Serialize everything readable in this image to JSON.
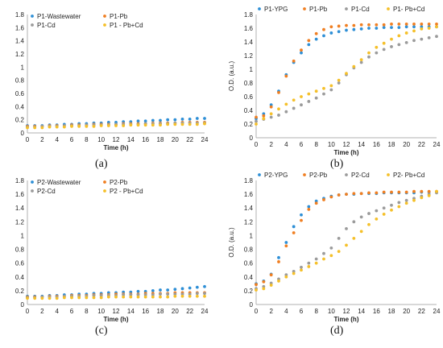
{
  "chart_data": [
    {
      "panel": "(a)",
      "type": "scatter",
      "xlabel": "Time (h)",
      "ylabel": "",
      "xlim": [
        0,
        24
      ],
      "ylim": [
        0,
        1.8
      ],
      "xticks": [
        "0",
        "2",
        "4",
        "6",
        "8",
        "10",
        "12",
        "14",
        "16",
        "18",
        "20",
        "22",
        "24"
      ],
      "yticks": [
        "0",
        "0.2",
        "0.4",
        "0.6",
        "0.8",
        "1",
        "1.2",
        "1.4",
        "1.6",
        "1.8"
      ],
      "legend": "top-left, two columns",
      "grid": false,
      "x": [
        0,
        1,
        2,
        3,
        4,
        5,
        6,
        7,
        8,
        9,
        10,
        11,
        12,
        13,
        14,
        15,
        16,
        17,
        18,
        19,
        20,
        21,
        22,
        23,
        24
      ],
      "series": [
        {
          "name": "P1-Wastewater",
          "color": "#2e8fd6",
          "values": [
            0.11,
            0.11,
            0.11,
            0.12,
            0.12,
            0.13,
            0.13,
            0.14,
            0.14,
            0.15,
            0.15,
            0.16,
            0.16,
            0.17,
            0.17,
            0.18,
            0.18,
            0.19,
            0.19,
            0.2,
            0.2,
            0.21,
            0.21,
            0.22,
            0.22
          ]
        },
        {
          "name": "P1-Pb",
          "color": "#f07f22",
          "values": [
            0.1,
            0.1,
            0.1,
            0.11,
            0.11,
            0.11,
            0.12,
            0.12,
            0.12,
            0.13,
            0.13,
            0.13,
            0.13,
            0.14,
            0.14,
            0.14,
            0.14,
            0.15,
            0.15,
            0.15,
            0.15,
            0.16,
            0.16,
            0.16,
            0.16
          ]
        },
        {
          "name": "P1-Cd",
          "color": "#9b9b9b",
          "values": [
            0.09,
            0.09,
            0.1,
            0.1,
            0.1,
            0.11,
            0.11,
            0.11,
            0.12,
            0.12,
            0.12,
            0.12,
            0.13,
            0.13,
            0.13,
            0.13,
            0.14,
            0.14,
            0.14,
            0.14,
            0.15,
            0.15,
            0.15,
            0.15,
            0.15
          ]
        },
        {
          "name": "P1 - Pb+Cd",
          "color": "#f5c02a",
          "values": [
            0.08,
            0.08,
            0.08,
            0.09,
            0.09,
            0.09,
            0.1,
            0.1,
            0.1,
            0.1,
            0.11,
            0.11,
            0.11,
            0.11,
            0.12,
            0.12,
            0.12,
            0.12,
            0.12,
            0.13,
            0.13,
            0.13,
            0.13,
            0.13,
            0.14
          ]
        }
      ]
    },
    {
      "panel": "(b)",
      "type": "scatter",
      "xlabel": "Time (h)",
      "ylabel": "O.D. (a.u.)",
      "xlim": [
        0,
        24
      ],
      "ylim": [
        0,
        1.8
      ],
      "xticks": [
        "0",
        "2",
        "4",
        "6",
        "8",
        "10",
        "12",
        "14",
        "16",
        "18",
        "20",
        "22",
        "24"
      ],
      "yticks": [
        "0",
        "0.2",
        "0.4",
        "0.6",
        "0.8",
        "1",
        "1.2",
        "1.4",
        "1.6",
        "1.8"
      ],
      "legend": "top, one row",
      "grid": false,
      "x": [
        0,
        1,
        2,
        3,
        4,
        5,
        6,
        7,
        8,
        9,
        10,
        11,
        12,
        13,
        14,
        15,
        16,
        17,
        18,
        19,
        20,
        21,
        22,
        23,
        24
      ],
      "series": [
        {
          "name": "P1-YPG",
          "color": "#2e8fd6",
          "values": [
            0.28,
            0.35,
            0.48,
            0.68,
            0.92,
            1.1,
            1.24,
            1.36,
            1.44,
            1.49,
            1.53,
            1.55,
            1.57,
            1.58,
            1.59,
            1.6,
            1.6,
            1.61,
            1.61,
            1.61,
            1.62,
            1.62,
            1.62,
            1.62,
            1.62
          ]
        },
        {
          "name": "P1-Pb",
          "color": "#f07f22",
          "values": [
            0.3,
            0.32,
            0.45,
            0.66,
            0.9,
            1.12,
            1.28,
            1.42,
            1.52,
            1.58,
            1.62,
            1.63,
            1.64,
            1.64,
            1.65,
            1.65,
            1.65,
            1.65,
            1.66,
            1.66,
            1.66,
            1.66,
            1.66,
            1.66,
            1.66
          ]
        },
        {
          "name": "P1-Cd",
          "color": "#9b9b9b",
          "values": [
            0.24,
            0.27,
            0.3,
            0.33,
            0.38,
            0.43,
            0.48,
            0.53,
            0.58,
            0.64,
            0.7,
            0.8,
            0.92,
            1.02,
            1.1,
            1.18,
            1.24,
            1.29,
            1.33,
            1.36,
            1.39,
            1.42,
            1.44,
            1.46,
            1.48
          ]
        },
        {
          "name": "P1- Pb+Cd",
          "color": "#f5c02a",
          "values": [
            0.2,
            0.28,
            0.35,
            0.42,
            0.49,
            0.55,
            0.6,
            0.64,
            0.68,
            0.72,
            0.76,
            0.84,
            0.94,
            1.04,
            1.14,
            1.24,
            1.32,
            1.38,
            1.44,
            1.49,
            1.53,
            1.56,
            1.59,
            1.6,
            1.62
          ]
        }
      ]
    },
    {
      "panel": "(c)",
      "type": "scatter",
      "xlabel": "Time (h)",
      "ylabel": "",
      "xlim": [
        0,
        24
      ],
      "ylim": [
        0,
        1.8
      ],
      "xticks": [
        "0",
        "2",
        "4",
        "6",
        "8",
        "10",
        "12",
        "14",
        "16",
        "18",
        "20",
        "22",
        "24"
      ],
      "yticks": [
        "0",
        "0.2",
        "0.4",
        "0.6",
        "0.8",
        "1",
        "1.2",
        "1.4",
        "1.6",
        "1.8"
      ],
      "legend": "top-left, two columns",
      "grid": false,
      "x": [
        0,
        1,
        2,
        3,
        4,
        5,
        6,
        7,
        8,
        9,
        10,
        11,
        12,
        13,
        14,
        15,
        16,
        17,
        18,
        19,
        20,
        21,
        22,
        23,
        24
      ],
      "series": [
        {
          "name": "P2-Wastewater",
          "color": "#2e8fd6",
          "values": [
            0.12,
            0.12,
            0.12,
            0.13,
            0.13,
            0.14,
            0.14,
            0.15,
            0.15,
            0.16,
            0.16,
            0.17,
            0.17,
            0.18,
            0.18,
            0.19,
            0.19,
            0.2,
            0.21,
            0.21,
            0.22,
            0.23,
            0.24,
            0.25,
            0.26
          ]
        },
        {
          "name": "P2-Pb",
          "color": "#f07f22",
          "values": [
            0.11,
            0.11,
            0.11,
            0.12,
            0.12,
            0.12,
            0.13,
            0.13,
            0.13,
            0.14,
            0.14,
            0.14,
            0.15,
            0.15,
            0.15,
            0.15,
            0.16,
            0.16,
            0.16,
            0.16,
            0.17,
            0.17,
            0.17,
            0.17,
            0.17
          ]
        },
        {
          "name": "P2-Cd",
          "color": "#9b9b9b",
          "values": [
            0.1,
            0.1,
            0.11,
            0.11,
            0.11,
            0.12,
            0.12,
            0.12,
            0.12,
            0.13,
            0.13,
            0.13,
            0.13,
            0.14,
            0.14,
            0.14,
            0.14,
            0.14,
            0.15,
            0.15,
            0.15,
            0.15,
            0.15,
            0.16,
            0.16
          ]
        },
        {
          "name": "P2 - Pb+Cd",
          "color": "#f5c02a",
          "values": [
            0.09,
            0.09,
            0.09,
            0.09,
            0.09,
            0.1,
            0.1,
            0.1,
            0.1,
            0.1,
            0.1,
            0.11,
            0.11,
            0.11,
            0.11,
            0.11,
            0.11,
            0.11,
            0.11,
            0.11,
            0.12,
            0.12,
            0.12,
            0.12,
            0.12
          ]
        }
      ]
    },
    {
      "panel": "(d)",
      "type": "scatter",
      "xlabel": "Time (h)",
      "ylabel": "O.D. (a.u.)",
      "xlim": [
        0,
        24
      ],
      "ylim": [
        0,
        1.8
      ],
      "xticks": [
        "0",
        "2",
        "4",
        "6",
        "8",
        "10",
        "12",
        "14",
        "16",
        "18",
        "20",
        "22",
        "24"
      ],
      "yticks": [
        "0",
        "0.2",
        "0.4",
        "0.6",
        "0.8",
        "1",
        "1.2",
        "1.4",
        "1.6",
        "1.8"
      ],
      "legend": "top, one row",
      "grid": false,
      "x": [
        0,
        1,
        2,
        3,
        4,
        5,
        6,
        7,
        8,
        9,
        10,
        11,
        12,
        13,
        14,
        15,
        16,
        17,
        18,
        19,
        20,
        21,
        22,
        23,
        24
      ],
      "series": [
        {
          "name": "P2-YPG",
          "color": "#2e8fd6",
          "values": [
            0.3,
            0.34,
            0.44,
            0.68,
            0.9,
            1.13,
            1.3,
            1.42,
            1.5,
            1.54,
            1.57,
            1.59,
            1.6,
            1.6,
            1.61,
            1.61,
            1.61,
            1.62,
            1.62,
            1.62,
            1.62,
            1.62,
            1.63,
            1.63,
            1.63
          ]
        },
        {
          "name": "P2-Pb",
          "color": "#f07f22",
          "values": [
            0.29,
            0.33,
            0.43,
            0.62,
            0.85,
            1.04,
            1.22,
            1.38,
            1.47,
            1.52,
            1.56,
            1.59,
            1.6,
            1.61,
            1.61,
            1.62,
            1.62,
            1.63,
            1.63,
            1.63,
            1.63,
            1.64,
            1.64,
            1.64,
            1.64
          ]
        },
        {
          "name": "P2-Cd",
          "color": "#9b9b9b",
          "values": [
            0.23,
            0.26,
            0.31,
            0.37,
            0.43,
            0.48,
            0.54,
            0.6,
            0.66,
            0.74,
            0.82,
            0.96,
            1.1,
            1.2,
            1.27,
            1.32,
            1.36,
            1.4,
            1.44,
            1.48,
            1.51,
            1.54,
            1.57,
            1.6,
            1.62
          ]
        },
        {
          "name": "P2- Pb+Cd",
          "color": "#f5c02a",
          "values": [
            0.21,
            0.23,
            0.28,
            0.34,
            0.4,
            0.45,
            0.5,
            0.55,
            0.6,
            0.66,
            0.71,
            0.77,
            0.86,
            0.96,
            1.06,
            1.16,
            1.24,
            1.31,
            1.37,
            1.42,
            1.47,
            1.51,
            1.55,
            1.58,
            1.64
          ]
        }
      ]
    }
  ]
}
